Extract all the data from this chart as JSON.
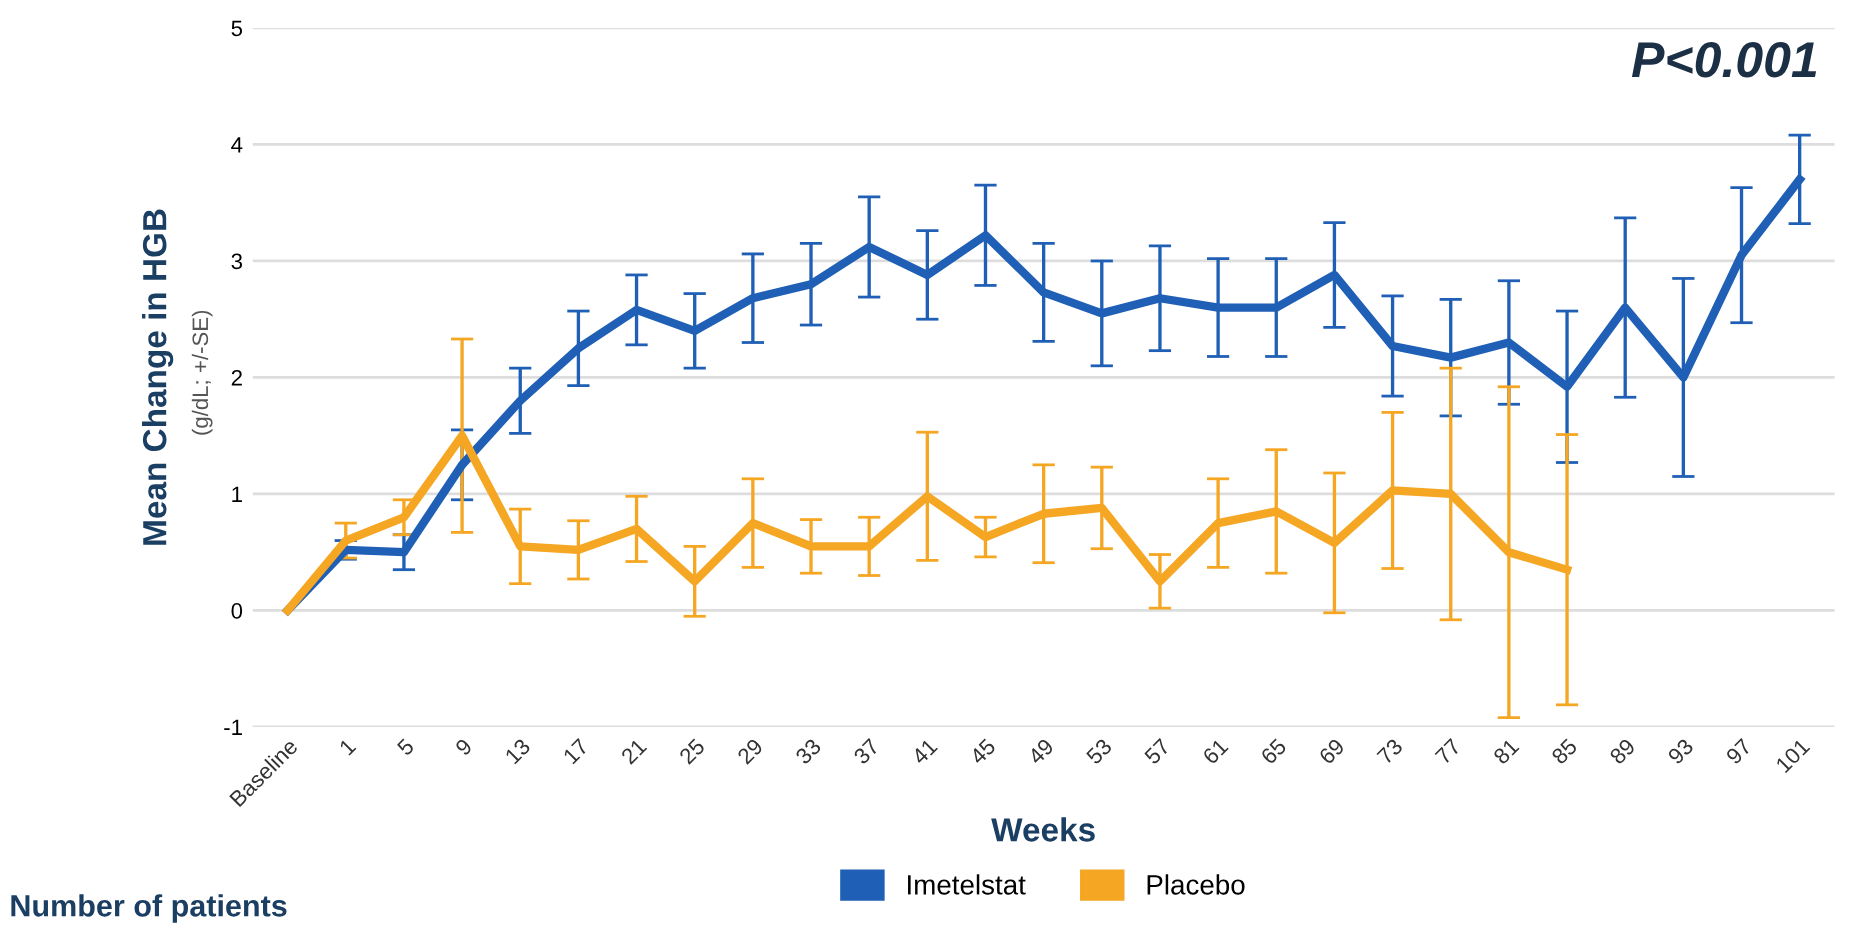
{
  "chart_data": {
    "type": "line",
    "xlabel": "Weeks",
    "ylabel": "Mean Change in HGB",
    "categories": [
      "Baseline",
      "1",
      "5",
      "9",
      "13",
      "17",
      "21",
      "25",
      "29",
      "33",
      "37",
      "41",
      "45",
      "49",
      "53",
      "57",
      "61",
      "65",
      "69",
      "73",
      "77",
      "81",
      "85",
      "89",
      "93",
      "97",
      "101"
    ],
    "series": [
      {
        "name": "Imetelstat",
        "color": "#1f5fb5",
        "values": [
          0,
          0.52,
          0.5,
          1.25,
          1.8,
          2.25,
          2.58,
          2.4,
          2.68,
          2.8,
          3.12,
          2.88,
          3.22,
          2.73,
          2.55,
          2.68,
          2.6,
          2.6,
          2.88,
          2.27,
          2.17,
          2.3,
          1.92,
          2.6,
          2.0,
          3.05,
          3.7
        ],
        "errors": [
          null,
          0.08,
          0.15,
          0.3,
          0.28,
          0.32,
          0.3,
          0.32,
          0.38,
          0.35,
          0.43,
          0.38,
          0.43,
          0.42,
          0.45,
          0.45,
          0.42,
          0.42,
          0.45,
          0.43,
          0.5,
          0.53,
          0.65,
          0.77,
          0.85,
          0.58,
          0.38
        ]
      },
      {
        "name": "Placebo",
        "color": "#f5a623",
        "values": [
          0,
          0.6,
          0.8,
          1.5,
          0.55,
          0.52,
          0.7,
          0.25,
          0.75,
          0.55,
          0.55,
          0.98,
          0.63,
          0.83,
          0.88,
          0.25,
          0.75,
          0.85,
          0.58,
          1.03,
          1.0,
          0.5,
          0.35,
          null,
          null,
          null,
          null
        ],
        "errors": [
          null,
          0.15,
          0.15,
          0.83,
          0.32,
          0.25,
          0.28,
          0.3,
          0.38,
          0.23,
          0.25,
          0.55,
          0.17,
          0.42,
          0.35,
          0.23,
          0.38,
          0.53,
          0.6,
          0.67,
          1.08,
          1.42,
          1.16,
          null,
          null,
          null,
          null
        ]
      }
    ],
    "ylim": [
      -1,
      5
    ],
    "yticks": [
      -1,
      0,
      1,
      2,
      3,
      4,
      5
    ],
    "grid": "y",
    "legend": "bottom",
    "marker": "none",
    "line_style": "solid",
    "annotations": [
      "P<0.001",
      "(g/dL; +/-SE)",
      "Number of patients"
    ]
  }
}
